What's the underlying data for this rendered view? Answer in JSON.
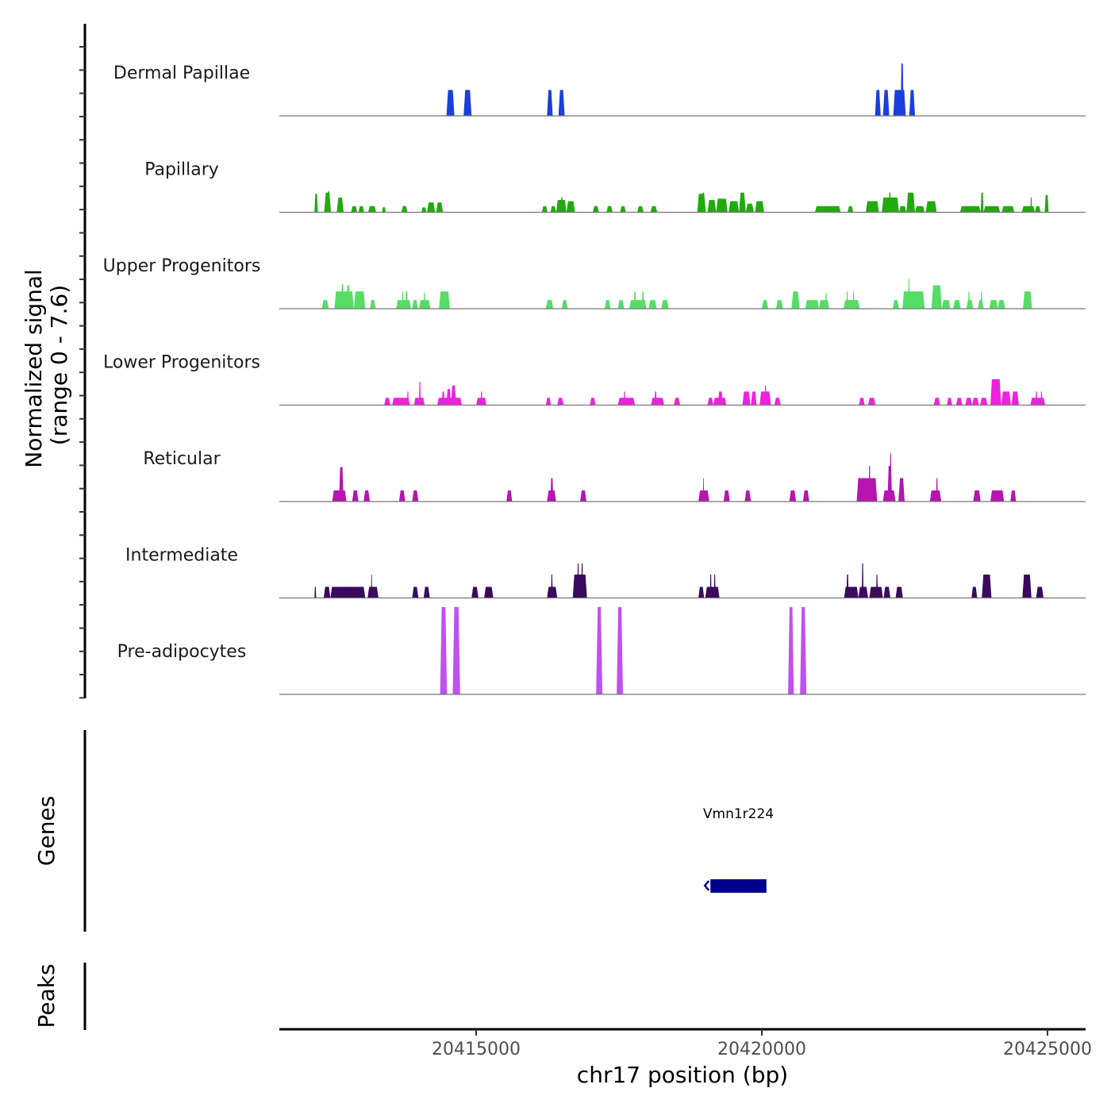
{
  "chart_data": {
    "type": "area",
    "title": "",
    "xlabel": "chr17 position (bp)",
    "ylabel": "Normalized signal\n(range 0 - 7.6)",
    "ylabel_lines": [
      "Normalized signal",
      "(range 0 - 7.6)"
    ],
    "ylim": [
      0,
      7.6
    ],
    "xlim": [
      20411500,
      20425600
    ],
    "x_ticks": [
      20415000,
      20420000,
      20425000
    ],
    "x_tick_labels": [
      "20415000",
      "20420000",
      "20425000"
    ],
    "grid": false,
    "legend": "none",
    "tracks": [
      {
        "name": "Dermal Papillae",
        "color": "#1a3fdc",
        "peaks": [
          [
            20414480,
            20414620,
            2.1
          ],
          [
            20414780,
            20414920,
            2.1
          ],
          [
            20416240,
            20416340,
            2.1
          ],
          [
            20416440,
            20416550,
            2.1
          ],
          [
            20421980,
            20422080,
            2.1
          ],
          [
            20422120,
            20422230,
            2.1
          ],
          [
            20422300,
            20422520,
            2.1
          ],
          [
            20422430,
            20422480,
            4.25
          ],
          [
            20422580,
            20422680,
            2.1
          ]
        ]
      },
      {
        "name": "Papillary",
        "color": "#22aa0f",
        "peaks": [
          [
            20412170,
            20412230,
            1.5
          ],
          [
            20412340,
            20412460,
            1.6
          ],
          [
            20412400,
            20412440,
            1.7
          ],
          [
            20412560,
            20412680,
            1.2
          ],
          [
            20412810,
            20412920,
            0.5
          ],
          [
            20412940,
            20413040,
            0.5
          ],
          [
            20413110,
            20413250,
            0.5
          ],
          [
            20413350,
            20413420,
            0.4
          ],
          [
            20413690,
            20413800,
            0.5
          ],
          [
            20414040,
            20414130,
            0.4
          ],
          [
            20414140,
            20414280,
            0.8
          ],
          [
            20414300,
            20414420,
            0.8
          ],
          [
            20416150,
            20416250,
            0.5
          ],
          [
            20416300,
            20416400,
            0.5
          ],
          [
            20416400,
            20416580,
            1.0
          ],
          [
            20416480,
            20416520,
            1.2
          ],
          [
            20416580,
            20416730,
            0.9
          ],
          [
            20417040,
            20417150,
            0.5
          ],
          [
            20417280,
            20417390,
            0.5
          ],
          [
            20417520,
            20417620,
            0.5
          ],
          [
            20417820,
            20417930,
            0.5
          ],
          [
            20418050,
            20418170,
            0.5
          ],
          [
            20418870,
            20419020,
            1.5
          ],
          [
            20418950,
            20419000,
            1.6
          ],
          [
            20419050,
            20419200,
            1.0
          ],
          [
            20419200,
            20419400,
            1.1
          ],
          [
            20419420,
            20419600,
            0.9
          ],
          [
            20419600,
            20419720,
            1.6
          ],
          [
            20419720,
            20419860,
            0.7
          ],
          [
            20419880,
            20420040,
            0.9
          ],
          [
            20420930,
            20421380,
            0.5
          ],
          [
            20421500,
            20421600,
            0.5
          ],
          [
            20421820,
            20422050,
            0.9
          ],
          [
            20422100,
            20422400,
            1.2
          ],
          [
            20422220,
            20422260,
            1.6
          ],
          [
            20422400,
            20422530,
            0.5
          ],
          [
            20422530,
            20422680,
            1.6
          ],
          [
            20422680,
            20422850,
            0.5
          ],
          [
            20422870,
            20423060,
            0.9
          ],
          [
            20423470,
            20423830,
            0.5
          ],
          [
            20423830,
            20423880,
            1.6
          ],
          [
            20423880,
            20424170,
            0.5
          ],
          [
            20424200,
            20424420,
            0.5
          ],
          [
            20424550,
            20424780,
            0.5
          ],
          [
            20424700,
            20424730,
            1.2
          ],
          [
            20424780,
            20424880,
            0.5
          ],
          [
            20424950,
            20425020,
            1.4
          ]
        ]
      },
      {
        "name": "Upper Progenitors",
        "color": "#55dd66",
        "peaks": [
          [
            20412300,
            20412420,
            0.7
          ],
          [
            20412520,
            20412860,
            1.4
          ],
          [
            20412640,
            20412680,
            2.0
          ],
          [
            20412730,
            20412790,
            1.9
          ],
          [
            20412860,
            20413060,
            1.4
          ],
          [
            20413140,
            20413240,
            0.7
          ],
          [
            20413600,
            20413860,
            0.7
          ],
          [
            20413700,
            20413730,
            1.4
          ],
          [
            20413760,
            20413800,
            1.4
          ],
          [
            20413880,
            20413980,
            0.7
          ],
          [
            20414000,
            20414200,
            0.7
          ],
          [
            20414080,
            20414110,
            1.3
          ],
          [
            20414350,
            20414540,
            1.4
          ],
          [
            20414470,
            20414510,
            1.4
          ],
          [
            20416220,
            20416350,
            0.7
          ],
          [
            20416500,
            20416600,
            0.7
          ],
          [
            20417250,
            20417350,
            0.7
          ],
          [
            20417480,
            20417590,
            0.7
          ],
          [
            20417680,
            20417980,
            0.7
          ],
          [
            20417760,
            20417800,
            1.4
          ],
          [
            20417900,
            20417940,
            1.4
          ],
          [
            20418020,
            20418160,
            0.7
          ],
          [
            20418240,
            20418370,
            0.7
          ],
          [
            20420000,
            20420110,
            0.7
          ],
          [
            20420250,
            20420370,
            0.7
          ],
          [
            20420520,
            20420660,
            1.4
          ],
          [
            20420760,
            20421000,
            0.7
          ],
          [
            20421000,
            20421180,
            0.7
          ],
          [
            20421110,
            20421140,
            1.3
          ],
          [
            20421430,
            20421710,
            0.7
          ],
          [
            20421480,
            20421510,
            1.4
          ],
          [
            20421590,
            20421620,
            1.4
          ],
          [
            20422290,
            20422400,
            0.7
          ],
          [
            20422460,
            20422850,
            1.4
          ],
          [
            20422560,
            20422590,
            2.4
          ],
          [
            20422650,
            20422680,
            1.4
          ],
          [
            20422730,
            20422760,
            1.4
          ],
          [
            20422970,
            20423150,
            1.9
          ],
          [
            20423030,
            20423070,
            1.9
          ],
          [
            20423150,
            20423300,
            0.7
          ],
          [
            20423350,
            20423480,
            0.7
          ],
          [
            20423580,
            20423700,
            0.7
          ],
          [
            20423610,
            20423640,
            1.4
          ],
          [
            20423780,
            20423880,
            0.7
          ],
          [
            20423830,
            20423860,
            1.4
          ],
          [
            20423980,
            20424130,
            0.7
          ],
          [
            20424130,
            20424260,
            0.7
          ],
          [
            20424570,
            20424730,
            1.4
          ]
        ]
      },
      {
        "name": "Lower Progenitors",
        "color": "#ee22dd",
        "peaks": [
          [
            20413390,
            20413500,
            0.6
          ],
          [
            20413530,
            20413840,
            0.6
          ],
          [
            20413790,
            20413820,
            1.1
          ],
          [
            20413910,
            20414100,
            0.6
          ],
          [
            20414000,
            20414030,
            1.9
          ],
          [
            20414320,
            20414750,
            0.6
          ],
          [
            20414400,
            20414450,
            1.1
          ],
          [
            20414480,
            20414560,
            1.3
          ],
          [
            20414560,
            20414650,
            1.6
          ],
          [
            20415000,
            20415180,
            0.6
          ],
          [
            20415080,
            20415110,
            1.1
          ],
          [
            20416220,
            20416310,
            0.6
          ],
          [
            20416420,
            20416530,
            0.6
          ],
          [
            20416990,
            20417090,
            0.6
          ],
          [
            20417480,
            20417780,
            0.6
          ],
          [
            20417580,
            20417610,
            1.1
          ],
          [
            20418060,
            20418290,
            0.6
          ],
          [
            20418120,
            20418160,
            1.1
          ],
          [
            20418460,
            20418570,
            0.6
          ],
          [
            20419050,
            20419150,
            0.6
          ],
          [
            20419150,
            20419380,
            0.6
          ],
          [
            20419230,
            20419320,
            1.1
          ],
          [
            20419660,
            20419800,
            1.1
          ],
          [
            20419810,
            20419910,
            1.1
          ],
          [
            20419960,
            20420160,
            1.1
          ],
          [
            20420050,
            20420080,
            1.6
          ],
          [
            20420220,
            20420330,
            0.6
          ],
          [
            20421700,
            20421800,
            0.6
          ],
          [
            20421860,
            20421990,
            0.6
          ],
          [
            20423010,
            20423120,
            0.6
          ],
          [
            20423240,
            20423330,
            0.6
          ],
          [
            20423400,
            20423510,
            0.6
          ],
          [
            20423560,
            20423680,
            0.6
          ],
          [
            20423680,
            20423800,
            0.6
          ],
          [
            20423820,
            20423950,
            0.6
          ],
          [
            20424000,
            20424190,
            2.1
          ],
          [
            20424100,
            20424130,
            2.1
          ],
          [
            20424190,
            20424360,
            1.1
          ],
          [
            20424370,
            20424500,
            1.1
          ],
          [
            20424700,
            20424960,
            0.6
          ],
          [
            20424790,
            20424820,
            1.1
          ],
          [
            20424880,
            20424910,
            1.1
          ]
        ]
      },
      {
        "name": "Reticular",
        "color": "#b515b0",
        "peaks": [
          [
            20412480,
            20412730,
            0.9
          ],
          [
            20412600,
            20412680,
            2.8
          ],
          [
            20412830,
            20412940,
            0.9
          ],
          [
            20413030,
            20413140,
            0.9
          ],
          [
            20413650,
            20413760,
            0.9
          ],
          [
            20413880,
            20413990,
            0.9
          ],
          [
            20415530,
            20415630,
            0.9
          ],
          [
            20416240,
            20416400,
            0.9
          ],
          [
            20416300,
            20416350,
            1.9
          ],
          [
            20416820,
            20416930,
            0.9
          ],
          [
            20418890,
            20419080,
            0.9
          ],
          [
            20418970,
            20418990,
            1.9
          ],
          [
            20419330,
            20419440,
            0.9
          ],
          [
            20419700,
            20419810,
            0.9
          ],
          [
            20420480,
            20420600,
            0.9
          ],
          [
            20420720,
            20420830,
            0.9
          ],
          [
            20421660,
            20421850,
            1.9
          ],
          [
            20421780,
            20422020,
            1.9
          ],
          [
            20421870,
            20421900,
            2.9
          ],
          [
            20422120,
            20422340,
            0.9
          ],
          [
            20422200,
            20422280,
            2.9
          ],
          [
            20422240,
            20422270,
            3.9
          ],
          [
            20422390,
            20422500,
            1.9
          ],
          [
            20422940,
            20423140,
            0.9
          ],
          [
            20423050,
            20423080,
            1.9
          ],
          [
            20423700,
            20423830,
            0.9
          ],
          [
            20424000,
            20424240,
            0.9
          ],
          [
            20424350,
            20424450,
            0.9
          ]
        ]
      },
      {
        "name": "Intermediate",
        "color": "#3a0a5e",
        "peaks": [
          [
            20412170,
            20412200,
            0.9
          ],
          [
            20412330,
            20412450,
            0.9
          ],
          [
            20412450,
            20413060,
            0.9
          ],
          [
            20413100,
            20413290,
            0.9
          ],
          [
            20413160,
            20413180,
            1.9
          ],
          [
            20413880,
            20413990,
            0.9
          ],
          [
            20414080,
            20414190,
            0.9
          ],
          [
            20414920,
            20415040,
            0.9
          ],
          [
            20415140,
            20415300,
            0.9
          ],
          [
            20416240,
            20416420,
            0.9
          ],
          [
            20416310,
            20416340,
            1.9
          ],
          [
            20416690,
            20416940,
            1.9
          ],
          [
            20416770,
            20416800,
            2.8
          ],
          [
            20416840,
            20416870,
            2.8
          ],
          [
            20418890,
            20418990,
            0.9
          ],
          [
            20419010,
            20419260,
            0.9
          ],
          [
            20419090,
            20419120,
            1.9
          ],
          [
            20419160,
            20419190,
            1.9
          ],
          [
            20421440,
            20421690,
            0.9
          ],
          [
            20421480,
            20421520,
            1.9
          ],
          [
            20421690,
            20421860,
            0.9
          ],
          [
            20421750,
            20421780,
            2.8
          ],
          [
            20421880,
            20422120,
            0.9
          ],
          [
            20422000,
            20422030,
            1.9
          ],
          [
            20422130,
            20422250,
            0.9
          ],
          [
            20422340,
            20422470,
            0.9
          ],
          [
            20423670,
            20423770,
            0.9
          ],
          [
            20423850,
            20424020,
            1.9
          ],
          [
            20424560,
            20424720,
            1.9
          ],
          [
            20424650,
            20424680,
            1.9
          ],
          [
            20424800,
            20424930,
            0.9
          ]
        ]
      },
      {
        "name": "Pre-adipocytes",
        "color": "#c050f0",
        "peaks": [
          [
            20414370,
            20414490,
            7.6
          ],
          [
            20414590,
            20414720,
            7.6
          ],
          [
            20417100,
            20417210,
            7.6
          ],
          [
            20417460,
            20417570,
            7.6
          ],
          [
            20420460,
            20420560,
            7.6
          ],
          [
            20420670,
            20420780,
            7.6
          ]
        ]
      }
    ],
    "genes_track": {
      "label": "Genes",
      "genes": [
        {
          "name": "Vmn1r224",
          "start": 20419100,
          "end": 20420080,
          "strand": "-",
          "color": "#00008b"
        }
      ]
    },
    "peaks_track": {
      "label": "Peaks",
      "peaks": []
    }
  }
}
